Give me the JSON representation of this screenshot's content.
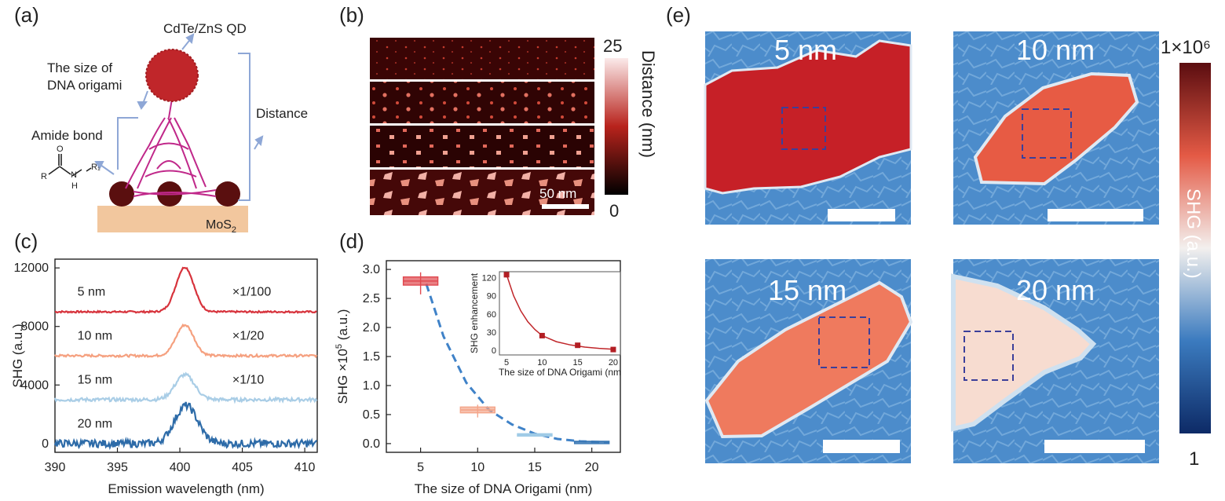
{
  "panels": {
    "a": "(a)",
    "b": "(b)",
    "c": "(c)",
    "d": "(d)",
    "e": "(e)"
  },
  "a": {
    "qd_label": "CdTe/ZnS QD",
    "size_label_line1": "The size of",
    "size_label_line2": "DNA origami",
    "distance_label": "Distance",
    "amide_label": "Amide bond",
    "mos2_label": "MoS",
    "mos2_sub": "2",
    "chem_R": "R",
    "chem_O": "O",
    "chem_N": "N",
    "chem_H": "H",
    "chem_R1": "R₁",
    "colors": {
      "qd": "#c0262a",
      "bead": "#5a0f0f",
      "dna": "#c0288a",
      "substrate": "#f2c79e",
      "arrow": "#8ea7d6"
    }
  },
  "b": {
    "scale_max": "25",
    "scale_min": "0",
    "cbar_label": "Distance (nm)",
    "scalebar_label": "50 nm"
  },
  "c": {
    "xlabel": "Emission wavelength (nm)",
    "ylabel": "SHG (a.u.)",
    "xticks": [
      "390",
      "395",
      "400",
      "405",
      "410"
    ],
    "yticks": [
      "0",
      "4000",
      "8000",
      "12000"
    ],
    "curve_labels": [
      "5 nm",
      "10 nm",
      "15 nm",
      "20 nm"
    ],
    "scale_labels": [
      "×1/100",
      "×1/20",
      "×1/10"
    ],
    "colors": [
      "#d7333c",
      "#f5a07f",
      "#a9cde6",
      "#2d6ba8"
    ]
  },
  "d": {
    "xlabel": "The size of DNA Origami (nm)",
    "ylabel": "SHG ×10",
    "ylabel_sup": "5",
    "ylabel_tail": " (a.u.)",
    "xticks": [
      "5",
      "10",
      "15",
      "20"
    ],
    "yticks": [
      "0.0",
      "0.5",
      "1.0",
      "1.5",
      "2.0",
      "2.5",
      "3.0"
    ],
    "inset": {
      "xlabel": "The size of DNA Origami (nm",
      "ylabel": "SHG enhancement",
      "xticks": [
        "5",
        "10",
        "15",
        "20"
      ],
      "yticks": [
        "0",
        "30",
        "60",
        "90",
        "120"
      ]
    }
  },
  "e": {
    "tiles": [
      "5 nm",
      "10 nm",
      "15 nm",
      "20 nm"
    ],
    "cbar_max": "1×10⁶",
    "cbar_min": "1",
    "cbar_label": "SHG (a.u.)"
  },
  "chart_data": [
    {
      "type": "line",
      "panel": "c",
      "xlabel": "Emission wavelength (nm)",
      "ylabel": "SHG (a.u.)",
      "xlim": [
        390,
        411
      ],
      "ylim": [
        -600,
        12600
      ],
      "series": [
        {
          "name": "5 nm",
          "offset": 9000,
          "peak_height": 3050,
          "peak_x": 400.4,
          "width": 1.0,
          "scale": "×1/100"
        },
        {
          "name": "10 nm",
          "offset": 6000,
          "peak_height": 2100,
          "peak_x": 400.4,
          "width": 1.0,
          "scale": "×1/20"
        },
        {
          "name": "15 nm",
          "offset": 3000,
          "peak_height": 1700,
          "peak_x": 400.4,
          "width": 1.1,
          "scale": "×1/10"
        },
        {
          "name": "20 nm",
          "offset": 0,
          "peak_height": 2600,
          "peak_x": 400.5,
          "width": 1.3,
          "scale": ""
        }
      ]
    },
    {
      "type": "scatter",
      "panel": "d",
      "xlabel": "The size of DNA Origami (nm)",
      "ylabel": "SHG ×10^5 (a.u.)",
      "xlim": [
        2,
        22.5
      ],
      "ylim": [
        -0.15,
        3.15
      ],
      "boxes": [
        {
          "x": 5,
          "median": 2.8,
          "q1": 2.73,
          "q3": 2.87,
          "min": 2.57,
          "max": 2.95,
          "color": "#e0484f"
        },
        {
          "x": 10,
          "median": 0.58,
          "q1": 0.53,
          "q3": 0.63,
          "min": 0.45,
          "max": 0.67,
          "color": "#f4a58a"
        },
        {
          "x": 15,
          "median": 0.15,
          "q1": 0.13,
          "q3": 0.17,
          "min": 0.12,
          "max": 0.18,
          "color": "#9fcbe6"
        },
        {
          "x": 20,
          "median": 0.03,
          "q1": 0.02,
          "q3": 0.04,
          "min": 0.01,
          "max": 0.05,
          "color": "#3a78b5"
        }
      ],
      "fit": {
        "x": [
          5.5,
          7,
          9,
          11,
          13,
          15,
          17,
          19,
          21.5
        ],
        "y": [
          2.75,
          1.85,
          1.05,
          0.58,
          0.33,
          0.17,
          0.08,
          0.04,
          0.02
        ],
        "color": "#3f82c8"
      }
    },
    {
      "type": "scatter",
      "panel": "d-inset",
      "xlabel": "The size of DNA Origami (nm",
      "ylabel": "SHG enhancement",
      "xlim": [
        4,
        21
      ],
      "ylim": [
        -8,
        130
      ],
      "points": {
        "x": [
          5,
          10,
          15,
          20
        ],
        "y": [
          125,
          24,
          8,
          1
        ]
      },
      "fit": {
        "x": [
          5,
          6,
          7,
          8,
          9,
          10,
          12,
          14,
          16,
          18,
          20
        ],
        "y": [
          125,
          90,
          65,
          47,
          34,
          24,
          14,
          8.5,
          5,
          3,
          1.5
        ]
      }
    }
  ]
}
